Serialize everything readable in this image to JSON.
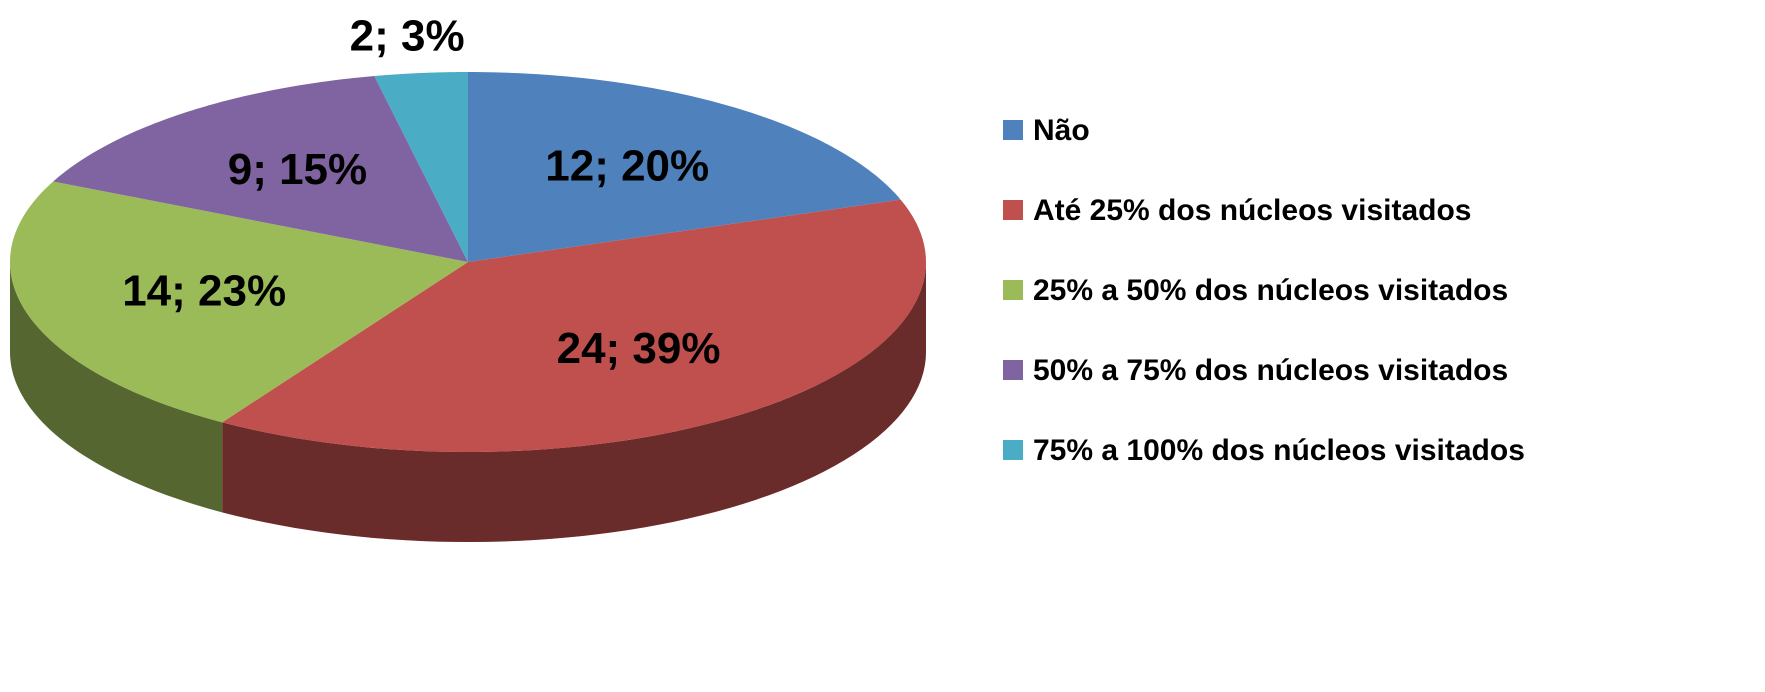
{
  "chart_data": {
    "type": "pie",
    "categories": [
      "Não",
      "Até 25% dos núcleos visitados",
      "25% a 50% dos núcleos visitados",
      "50% a 75% dos núcleos visitados",
      "75% a 100% dos núcleos visitados"
    ],
    "values": [
      12,
      24,
      14,
      9,
      2
    ],
    "value_labels": [
      "12; 20%",
      "24; 39%",
      "14; 23%",
      "9; 15%",
      "2; 3%"
    ],
    "colors": [
      "#4f81bd",
      "#c0504d",
      "#9bbb59",
      "#8064a2",
      "#4bacc6"
    ],
    "legend": "right"
  }
}
